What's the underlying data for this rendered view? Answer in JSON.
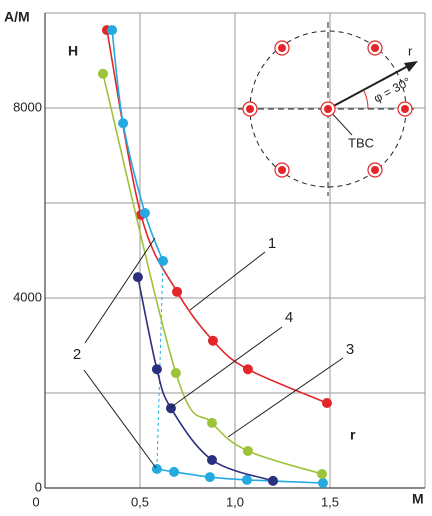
{
  "chart_data": {
    "type": "scatter",
    "y_label": "A/M",
    "x_label": "M",
    "annotations": [
      "H",
      "r"
    ],
    "xlim": [
      0,
      2.0
    ],
    "ylim": [
      0,
      10000
    ],
    "xticks": [
      0,
      {
        "value": 0.5,
        "label": "0,5"
      },
      {
        "value": 1.0,
        "label": "1,0"
      },
      {
        "value": 1.5,
        "label": "1,5"
      }
    ],
    "yticks": [
      0,
      4000,
      8000
    ],
    "y_minor_grid": [
      2000,
      6000
    ],
    "grid": true,
    "series": [
      {
        "name": "1",
        "color": "#e3262a",
        "x": [
          0.326,
          0.505,
          0.695,
          0.884,
          1.068,
          1.484
        ],
        "values": [
          9640,
          5750,
          4130,
          3100,
          2500,
          1790
        ]
      },
      {
        "name": "2",
        "color": "#22aae1",
        "x": [
          0.353,
          0.411,
          0.526,
          0.621,
          null,
          0.589,
          0.679,
          0.868,
          1.063,
          1.463
        ],
        "values": [
          9640,
          7680,
          5790,
          4780,
          null,
          400,
          340,
          230,
          170,
          105
        ]
      },
      {
        "name": "3",
        "color": "#9dc33b",
        "x": [
          0.305,
          0.689,
          0.879,
          1.068,
          1.458
        ],
        "values": [
          8720,
          2420,
          1370,
          780,
          295
        ]
      },
      {
        "name": "4",
        "color": "#2b2f7f",
        "x": [
          0.489,
          0.589,
          0.663,
          0.879,
          1.2
        ],
        "values": [
          4440,
          2500,
          1680,
          590,
          150
        ]
      }
    ],
    "inset_labels": [
      "r",
      "φ = 30°",
      "TBC"
    ]
  }
}
